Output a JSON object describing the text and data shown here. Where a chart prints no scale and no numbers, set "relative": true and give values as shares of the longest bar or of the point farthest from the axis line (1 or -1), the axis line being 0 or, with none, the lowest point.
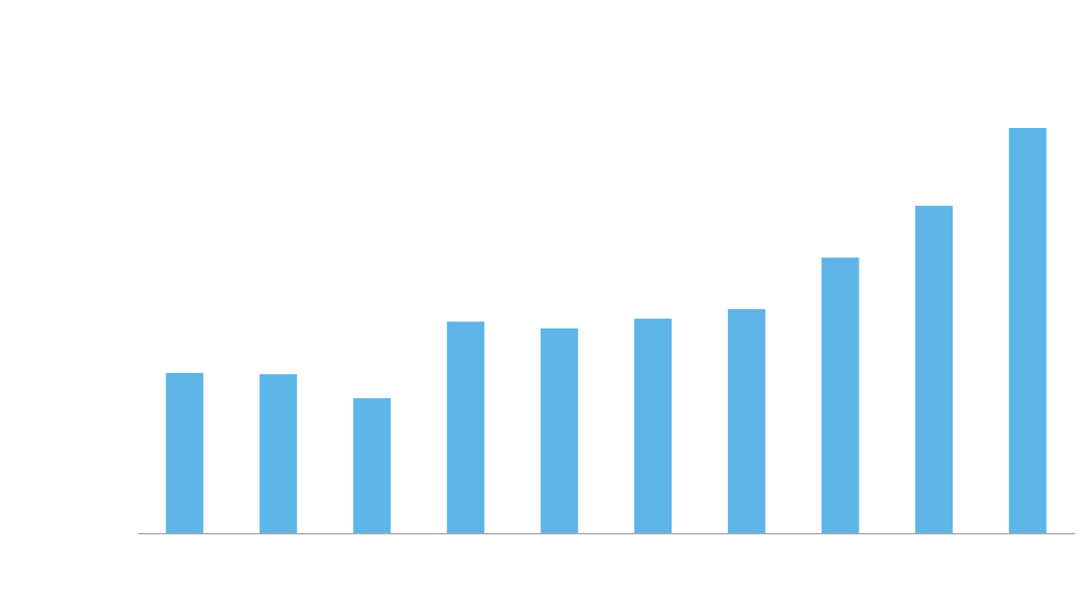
{
  "chart_data": {
    "type": "bar",
    "relative": true,
    "categories": [
      null,
      null,
      null,
      null,
      null,
      null,
      null,
      null,
      null,
      null
    ],
    "values": [
      0.395,
      0.392,
      0.333,
      0.522,
      0.505,
      0.529,
      0.553,
      0.68,
      0.808,
      1
    ],
    "color": "#5db5e8"
  }
}
